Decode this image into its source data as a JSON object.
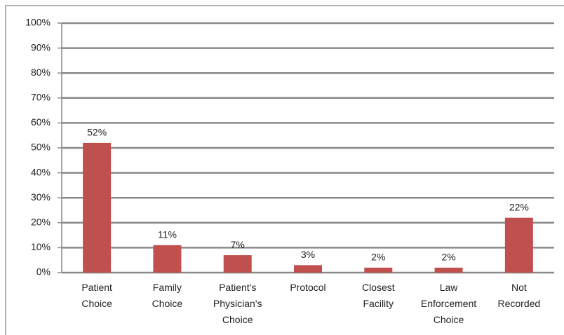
{
  "chart_data": {
    "type": "bar",
    "categories": [
      "Patient Choice",
      "Family Choice",
      "Patient's Physician's Choice",
      "Protocol",
      "Closest Facility",
      "Law Enforcement Choice",
      "Not Recorded"
    ],
    "values": [
      52,
      11,
      7,
      3,
      2,
      2,
      22
    ],
    "value_labels": [
      "52%",
      "11%",
      "7%",
      "3%",
      "2%",
      "2%",
      "22%"
    ],
    "color": "#c0504d",
    "ylim": [
      0,
      100
    ],
    "yticks": [
      {
        "value": 0,
        "label": "0%"
      },
      {
        "value": 10,
        "label": "10%"
      },
      {
        "value": 20,
        "label": "20%"
      },
      {
        "value": 30,
        "label": "30%"
      },
      {
        "value": 40,
        "label": "40%"
      },
      {
        "value": 50,
        "label": "50%"
      },
      {
        "value": 60,
        "label": "60%"
      },
      {
        "value": 70,
        "label": "70%"
      },
      {
        "value": 80,
        "label": "80%"
      },
      {
        "value": 90,
        "label": "90%"
      },
      {
        "value": 100,
        "label": "100%"
      }
    ],
    "grid": true
  }
}
